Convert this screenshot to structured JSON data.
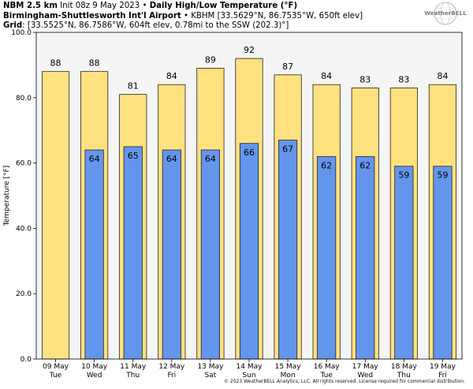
{
  "header": {
    "line1": {
      "model": "NBM 2.5 km",
      "init": " Init 08z 9 May 2023 • ",
      "product": "Daily High/Low Temperature (°F)"
    },
    "line2": {
      "station": "Birmingham-Shuttlesworth Int'l Airport",
      "details": " • KBHM [33.5629°N, 86.7535°W, 650ft elev]"
    },
    "line3": {
      "grid_label": "Grid",
      "grid_details": ": [33.5525°N, 86.7586°W, 604ft elev, 0.78mi to the SSW (202.3)°]"
    }
  },
  "logo": {
    "text": "WeatherBELL",
    "icon": "globe-logo-icon"
  },
  "copyright": "© 2023 WeatherBELL Analytics, LLC. All rights reserved. License required for commercial distribution.",
  "chart_data": {
    "type": "bar",
    "ylabel": "Temperature [°F]",
    "ylim": [
      0,
      100
    ],
    "yticks": [
      0,
      20,
      40,
      60,
      80,
      100
    ],
    "ytick_labels": [
      "0.0",
      "20.0",
      "40.0",
      "60.0",
      "80.0",
      "100.0"
    ],
    "categories": [
      {
        "date": "09 May",
        "day": "Tue"
      },
      {
        "date": "10 May",
        "day": "Wed"
      },
      {
        "date": "11 May",
        "day": "Thu"
      },
      {
        "date": "12 May",
        "day": "Fri"
      },
      {
        "date": "13 May",
        "day": "Sat"
      },
      {
        "date": "14 May",
        "day": "Sun"
      },
      {
        "date": "15 May",
        "day": "Mon"
      },
      {
        "date": "16 May",
        "day": "Tue"
      },
      {
        "date": "17 May",
        "day": "Wed"
      },
      {
        "date": "18 May",
        "day": "Thu"
      },
      {
        "date": "19 May",
        "day": "Fri"
      }
    ],
    "series": [
      {
        "values": [
          88,
          88,
          81,
          84,
          89,
          92,
          87,
          84,
          83,
          83,
          84
        ],
        "color": "#ffe17f"
      },
      {
        "values": [
          null,
          64,
          65,
          64,
          64,
          66,
          67,
          62,
          62,
          59,
          59
        ],
        "color": "#6495ed"
      }
    ],
    "plot_background": "#f5f5f5",
    "grid": false
  }
}
